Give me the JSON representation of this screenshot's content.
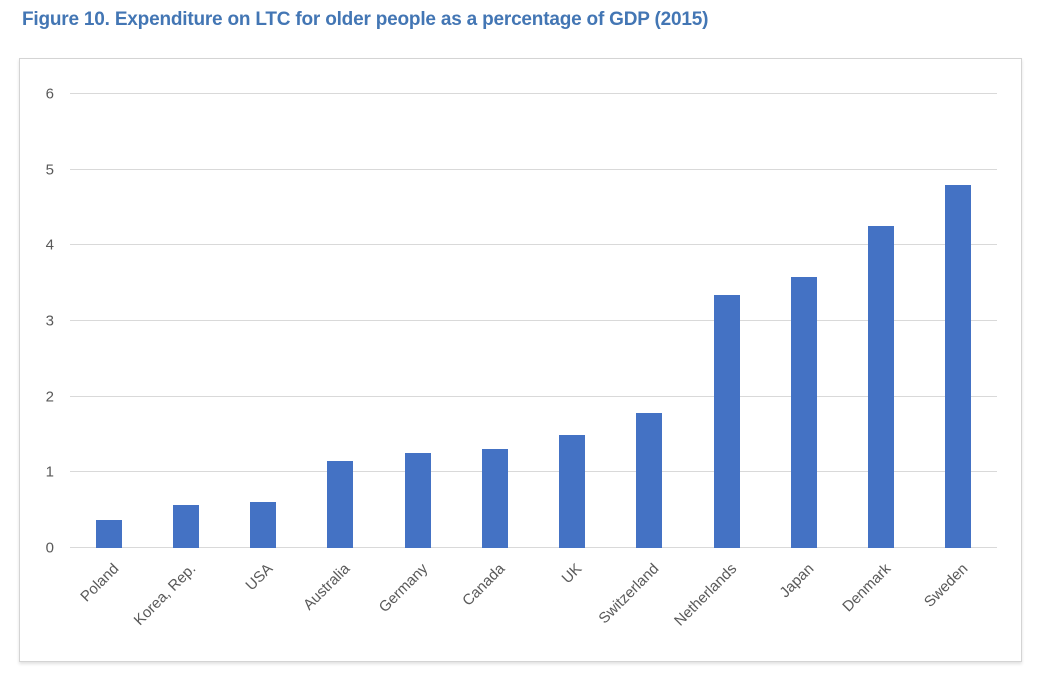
{
  "title": "Figure 10. Expenditure on LTC for older people as a percentage of GDP (2015)",
  "colors": {
    "title": "#4376B4",
    "bar": "#4472C4",
    "gridline": "#D9D9D9",
    "axis_text": "#595959",
    "panel_border": "#D4D4D4"
  },
  "chart_data": {
    "type": "bar",
    "title": "Figure 10. Expenditure on LTC for older people as a percentage of GDP (2015)",
    "categories": [
      "Poland",
      "Korea, Rep.",
      "USA",
      "Australia",
      "Germany",
      "Canada",
      "UK",
      "Switzerland",
      "Netherlands",
      "Japan",
      "Denmark",
      "Sweden"
    ],
    "values": [
      0.37,
      0.57,
      0.61,
      1.15,
      1.25,
      1.31,
      1.5,
      1.79,
      3.35,
      3.58,
      4.25,
      4.8
    ],
    "xlabel": "",
    "ylabel": "",
    "ylim": [
      0,
      6
    ],
    "yticks": [
      0,
      1,
      2,
      3,
      4,
      5,
      6
    ],
    "grid": true,
    "legend": "none",
    "bar_color": "#4472C4"
  }
}
